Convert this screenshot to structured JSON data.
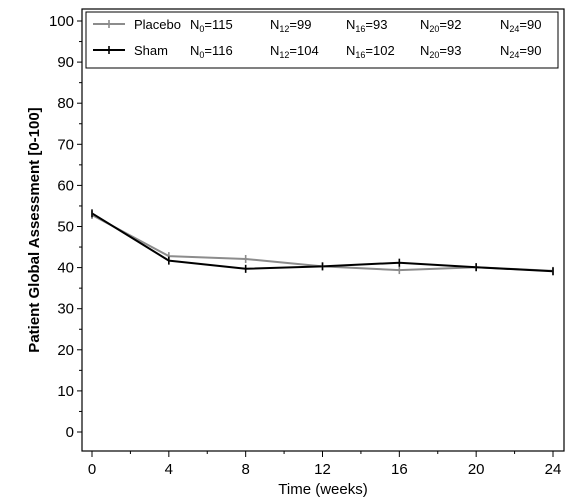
{
  "chart_data": {
    "type": "line",
    "xlabel": "Time (weeks)",
    "ylabel": "Patient Global Assessment [0-100]",
    "xlim": [
      0,
      24
    ],
    "ylim": [
      0,
      100
    ],
    "x_ticks": [
      0,
      4,
      8,
      12,
      16,
      20,
      24
    ],
    "y_ticks": [
      0,
      10,
      20,
      30,
      40,
      50,
      60,
      70,
      80,
      90,
      100
    ],
    "x": [
      0,
      4,
      8,
      12,
      16,
      20,
      24
    ],
    "grid": false,
    "legend_position": "top",
    "series": [
      {
        "name": "Placebo",
        "color": "#8c8c8c",
        "values": [
          52.8,
          42.8,
          42.1,
          40.3,
          39.4,
          40.1,
          39.2
        ],
        "counts": [
          {
            "sub": "0",
            "value": "115"
          },
          {
            "sub": "12",
            "value": "99"
          },
          {
            "sub": "16",
            "value": "93"
          },
          {
            "sub": "20",
            "value": "92"
          },
          {
            "sub": "24",
            "value": "90"
          }
        ]
      },
      {
        "name": "Sham",
        "color": "#000000",
        "values": [
          53.2,
          41.7,
          39.7,
          40.3,
          41.2,
          40.1,
          39.1
        ],
        "counts": [
          {
            "sub": "0",
            "value": "116"
          },
          {
            "sub": "12",
            "value": "104"
          },
          {
            "sub": "16",
            "value": "102"
          },
          {
            "sub": "20",
            "value": "93"
          },
          {
            "sub": "24",
            "value": "90"
          }
        ]
      }
    ],
    "count_prefix": "N",
    "count_separator": "="
  }
}
